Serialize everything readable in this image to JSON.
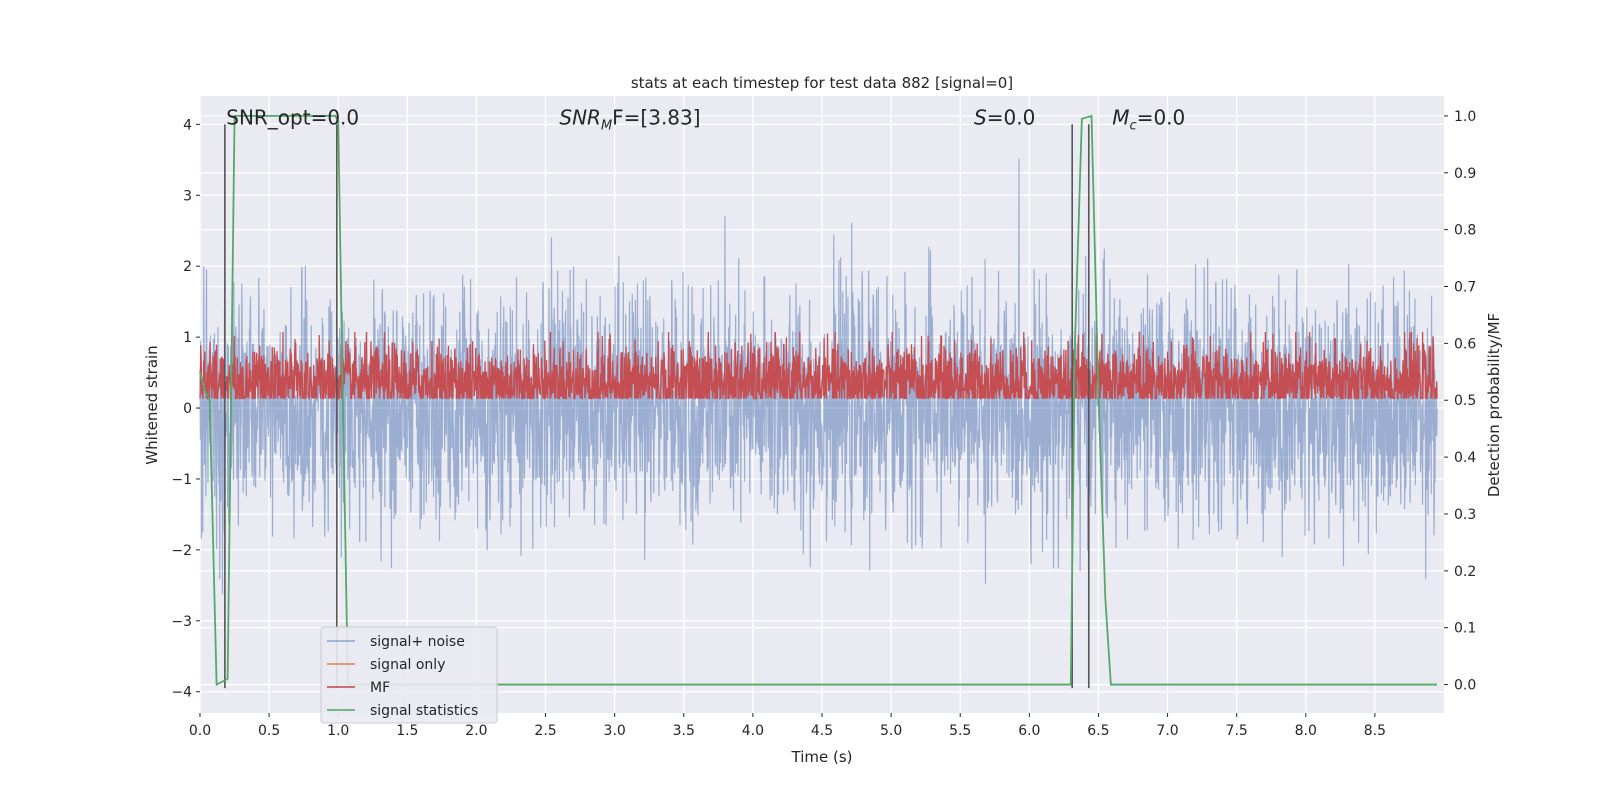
{
  "chart_data": {
    "type": "line",
    "title": "stats at each timestep for test data 882 [signal=0]",
    "xlabel": "Time (s)",
    "ylabel": "Whitened strain",
    "y2label": "Detection probability/MF",
    "xlim": [
      0.0,
      9.0
    ],
    "ylim": [
      -4.3,
      4.4
    ],
    "y2lim": [
      -0.05,
      1.035
    ],
    "xticks": [
      "0.0",
      "0.5",
      "1.0",
      "1.5",
      "2.0",
      "2.5",
      "3.0",
      "3.5",
      "4.0",
      "4.5",
      "5.0",
      "5.5",
      "6.0",
      "6.5",
      "7.0",
      "7.5",
      "8.0",
      "8.5"
    ],
    "yticks": [
      "−4",
      "−3",
      "−2",
      "−1",
      "0",
      "1",
      "2",
      "3",
      "4"
    ],
    "y2ticks": [
      "0.0",
      "0.1",
      "0.2",
      "0.3",
      "0.4",
      "0.5",
      "0.6",
      "0.7",
      "0.8",
      "0.9",
      "1.0"
    ],
    "grid": true,
    "legend_position": "lower-left",
    "annotations": [
      {
        "text": "SNR_opt=0.0",
        "x": 0.19,
        "y": 4.1
      },
      {
        "main": "SNR",
        "sub": "M",
        "rest": "F=[3.83]",
        "x": 2.6,
        "y": 4.1
      },
      {
        "main": "S",
        "rest": "=0.0",
        "x": 5.6,
        "y": 4.1
      },
      {
        "main": "M",
        "sub": "c",
        "rest": "=0.0",
        "x": 6.6,
        "y": 4.1
      }
    ],
    "series": [
      {
        "name": "signal+ noise",
        "color": "#4c72b0",
        "opacity": 0.5,
        "axis": "left",
        "sample_rate_hz": 400,
        "noise_std": 0.82
      },
      {
        "name": "signal only",
        "color": "#dd8452",
        "axis": "left",
        "values": [
          0
        ]
      },
      {
        "name": "MF",
        "color": "#c44e52",
        "axis": "right",
        "sample_rate_hz": 400,
        "baseline": 0.53,
        "noise_std": 0.035
      },
      {
        "name": "signal statistics",
        "color": "#55a868",
        "axis": "right",
        "x": [
          0.0,
          0.03,
          0.07,
          0.12,
          0.2,
          0.25,
          0.98,
          1.0,
          1.03,
          1.07,
          1.12,
          6.3,
          6.33,
          6.38,
          6.45,
          6.5,
          6.55,
          6.59,
          8.95
        ],
        "y": [
          0.55,
          0.52,
          0.5,
          0.0,
          0.01,
          1.0,
          1.0,
          0.99,
          0.55,
          0.0,
          0.0,
          0.0,
          0.6,
          0.995,
          1.0,
          0.51,
          0.15,
          0.0,
          0.0
        ]
      }
    ],
    "vertical_lines": [
      0.18,
      0.99,
      6.31,
      6.43
    ]
  }
}
